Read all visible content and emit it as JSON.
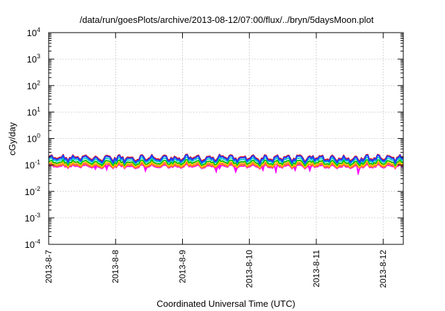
{
  "chart_data": {
    "type": "line",
    "title": "/data/run/goesPlots/archive/2013-08-12/07:00/flux/../bryn/5daysMoon.plot",
    "xlabel": "Coordinated Universal Time (UTC)",
    "ylabel": "cGy/day",
    "y_scale": "log",
    "ylim_exponent": [
      -4,
      4
    ],
    "y_tick_labels": [
      {
        "exp": -4,
        "base": "10",
        "sup": "-4"
      },
      {
        "exp": -3,
        "base": "10",
        "sup": "-3"
      },
      {
        "exp": -2,
        "base": "10",
        "sup": "-2"
      },
      {
        "exp": -1,
        "base": "10",
        "sup": "-1"
      },
      {
        "exp": 0,
        "base": "10",
        "sup": "0"
      },
      {
        "exp": 1,
        "base": "10",
        "sup": "1"
      },
      {
        "exp": 2,
        "base": "10",
        "sup": "2"
      },
      {
        "exp": 3,
        "base": "10",
        "sup": "3"
      },
      {
        "exp": 4,
        "base": "10",
        "sup": "4"
      }
    ],
    "x_range_days": [
      0,
      5.3
    ],
    "x_ticks": [
      {
        "day": 0,
        "label": "2013-8-7"
      },
      {
        "day": 1,
        "label": "2013-8-8"
      },
      {
        "day": 2,
        "label": "2013-8-9"
      },
      {
        "day": 3,
        "label": "2013-8-10"
      },
      {
        "day": 4,
        "label": "2013-8-11"
      },
      {
        "day": 5,
        "label": "2013-8-12"
      }
    ],
    "grid": true,
    "legend": "none",
    "series": [
      {
        "color": "#ff00ff",
        "fill": true,
        "base": 0.085,
        "dip_depth": 0.35
      },
      {
        "color": "#ff8c00",
        "base": 0.095
      },
      {
        "color": "#ffd700",
        "base": 0.11
      },
      {
        "color": "#00c000",
        "base": 0.125
      },
      {
        "color": "#00cccc",
        "base": 0.15
      },
      {
        "color": "#ff0000",
        "base": 0.19
      },
      {
        "color": "#2040ff",
        "base": 0.175
      }
    ]
  }
}
